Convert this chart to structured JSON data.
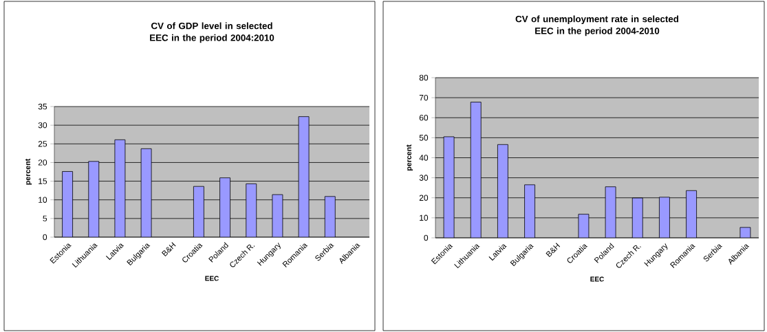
{
  "chart_data": [
    {
      "type": "bar",
      "title": "CV of GDP level in selected EEC in the period 2004:2010",
      "xlabel": "EEC",
      "ylabel": "percent",
      "categories": [
        "Estonia",
        "Lithuania",
        "Latvia",
        "Bulgaria",
        "B&H",
        "Croatia",
        "Poland",
        "Czech R.",
        "Hungary",
        "Romania",
        "Serbia",
        "Albania"
      ],
      "values": [
        17.6,
        20.3,
        26.1,
        23.7,
        null,
        13.6,
        15.9,
        14.3,
        11.4,
        32.3,
        10.9,
        null
      ],
      "color": "#9999ff",
      "ylim": [
        0,
        35
      ],
      "yticks": [
        0,
        5,
        10,
        15,
        20,
        25,
        30,
        35
      ],
      "grid": "y"
    },
    {
      "type": "bar",
      "title": "CV of unemployment rate in selected EEC in the period 2004-2010",
      "xlabel": "EEC",
      "ylabel": "percent",
      "categories": [
        "Estonia",
        "Lithuania",
        "Latvia",
        "Bulgaria",
        "B&H",
        "Croatia",
        "Poland",
        "Czech R.",
        "Hungary",
        "Romania",
        "Serbia",
        "Albania"
      ],
      "values": [
        50.5,
        67.8,
        46.6,
        26.5,
        null,
        11.8,
        25.5,
        19.9,
        20.3,
        23.6,
        null,
        5.2
      ],
      "color": "#9999ff",
      "ylim": [
        0,
        80
      ],
      "yticks": [
        0,
        10,
        20,
        30,
        40,
        50,
        60,
        70,
        80
      ],
      "grid": "y"
    }
  ]
}
